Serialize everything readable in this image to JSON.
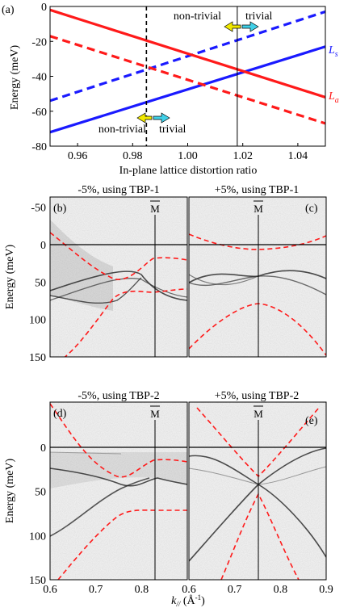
{
  "figure": {
    "panel_a_label": "(a)"
  },
  "chart_data": [
    {
      "panel": "a",
      "type": "line",
      "xlabel": "In-plane lattice distortion ratio",
      "ylabel": "Energy (meV)",
      "xlim": [
        0.95,
        1.05
      ],
      "ylim": [
        -80,
        0
      ],
      "xticks": [
        "0.96",
        "0.98",
        "1.00",
        "1.02",
        "1.04"
      ],
      "yticks": [
        "0",
        "-20",
        "-40",
        "-60",
        "-80"
      ],
      "series": [
        {
          "name": "Ls",
          "color": "#1a1aff",
          "style": "solid",
          "x": [
            0.95,
            1.05
          ],
          "y": [
            -72,
            -23
          ]
        },
        {
          "name": "Ls",
          "color": "#1a1aff",
          "style": "dashed",
          "x": [
            0.95,
            1.05
          ],
          "y": [
            -54,
            -3
          ]
        },
        {
          "name": "La",
          "color": "#ff1a1a",
          "style": "solid",
          "x": [
            0.95,
            1.05
          ],
          "y": [
            -2,
            -52
          ]
        },
        {
          "name": "La",
          "color": "#ff1a1a",
          "style": "dashed",
          "x": [
            0.95,
            1.05
          ],
          "y": [
            -17,
            -67
          ]
        }
      ],
      "series_labels": [
        {
          "main": "L",
          "sub": "s",
          "color": "#1a1aff"
        },
        {
          "main": "L",
          "sub": "a",
          "color": "#ff1a1a"
        }
      ],
      "vlines": [
        {
          "x": 0.985,
          "style": "dashed"
        },
        {
          "x": 1.018,
          "style": "solid"
        }
      ],
      "annotations": {
        "top": {
          "left": "non-trivial",
          "right": "trivial"
        },
        "bottom": {
          "left": "non-trivial",
          "right": "trivial"
        }
      }
    }
  ],
  "arpes_panels": {
    "b": {
      "label": "(b)",
      "title": "-5%, using TBP-1",
      "mbar": "M"
    },
    "c": {
      "label": "(c)",
      "title": "+5%, using TBP-1",
      "mbar": "M"
    },
    "d": {
      "label": "(d)",
      "title": "-5%, using TBP-2",
      "mbar": "M"
    },
    "e": {
      "label": "(e)",
      "title": "+5%, using TBP-2",
      "mbar": "M"
    },
    "ylabel": "Energy (meV)",
    "top_yticks": [
      "-50",
      "0",
      "50",
      "100",
      "150"
    ],
    "bottom_yticks": [
      "0",
      "50",
      "100",
      "150"
    ],
    "xticks": [
      "0.6",
      "0.7",
      "0.8",
      "0.9"
    ],
    "xlabel_main": "k",
    "xlabel_sub": "//",
    "xlabel_unit": " (Å",
    "xlabel_sup": "-1",
    "xlabel_close": ")"
  },
  "colors": {
    "blue": "#1a1aff",
    "red": "#ff1a1a",
    "yellow": "#d4c000",
    "cyan": "#2aa8b0",
    "arrow_yellow": "#f0e800",
    "arrow_cyan": "#40d0e8"
  }
}
